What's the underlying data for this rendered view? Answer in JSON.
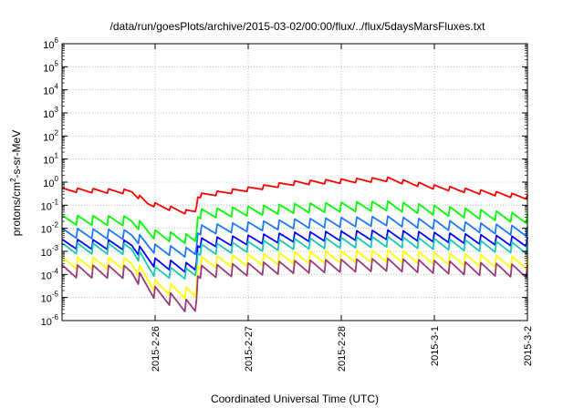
{
  "chart_data": {
    "type": "line",
    "title": "/data/run/goesPlots/archive/2015-03-02/00:00/flux/../flux/5daysMarsFluxes.txt",
    "xlabel": "Coordinated Universal Time (UTC)",
    "ylabel": {
      "prefix": "protons/cm",
      "sup": "2",
      "suffix": "-s-sr-MeV"
    },
    "yscale": "log",
    "ylim": [
      1e-06,
      1000000.0
    ],
    "xlim": [
      "2015-02-25 00:00",
      "2015-03-02 00:00"
    ],
    "grid": true,
    "y_ticks": [
      {
        "value": 1e-06,
        "base": "10",
        "exp": "-6"
      },
      {
        "value": 1e-05,
        "base": "10",
        "exp": "-5"
      },
      {
        "value": 0.0001,
        "base": "10",
        "exp": "-4"
      },
      {
        "value": 0.001,
        "base": "10",
        "exp": "-3"
      },
      {
        "value": 0.01,
        "base": "10",
        "exp": "-2"
      },
      {
        "value": 0.1,
        "base": "10",
        "exp": "-1"
      },
      {
        "value": 1.0,
        "base": "10",
        "exp": "0"
      },
      {
        "value": 10.0,
        "base": "10",
        "exp": "1"
      },
      {
        "value": 100.0,
        "base": "10",
        "exp": "2"
      },
      {
        "value": 1000.0,
        "base": "10",
        "exp": "3"
      },
      {
        "value": 10000.0,
        "base": "10",
        "exp": "4"
      },
      {
        "value": 100000.0,
        "base": "10",
        "exp": "5"
      },
      {
        "value": 1000000.0,
        "base": "10",
        "exp": "6"
      }
    ],
    "x_ticks": [
      {
        "date": "2015-02-26 00:00",
        "label": "2015-2-26"
      },
      {
        "date": "2015-02-27 00:00",
        "label": "2015-2-27"
      },
      {
        "date": "2015-02-28 00:00",
        "label": "2015-2-28"
      },
      {
        "date": "2015-03-01 00:00",
        "label": "2015-3-1"
      },
      {
        "date": "2015-03-02 00:00",
        "label": "2015-3-2"
      }
    ],
    "series": [
      {
        "color": "#ff0000",
        "period_hours": 4,
        "sawtooth_decades": 0.2,
        "anchors": [
          [
            "2015-02-25 00:00",
            0.45
          ],
          [
            "2015-02-25 18:00",
            0.38
          ],
          [
            "2015-02-25 22:00",
            0.12
          ],
          [
            "2015-02-26 08:00",
            0.05
          ],
          [
            "2015-02-26 10:30",
            0.055
          ],
          [
            "2015-02-26 11:00",
            0.25
          ],
          [
            "2015-02-27 12:00",
            0.9
          ],
          [
            "2015-02-28 12:00",
            1.3
          ],
          [
            "2015-03-01 00:00",
            0.6
          ],
          [
            "2015-03-02 00:00",
            0.22
          ]
        ]
      },
      {
        "color": "#00ff00",
        "period_hours": 4,
        "sawtooth_decades": 0.45,
        "anchors": [
          [
            "2015-02-25 00:00",
            0.022
          ],
          [
            "2015-02-25 18:00",
            0.02
          ],
          [
            "2015-02-26 00:00",
            0.005
          ],
          [
            "2015-02-26 10:30",
            0.003
          ],
          [
            "2015-02-26 11:00",
            0.04
          ],
          [
            "2015-02-27 12:00",
            0.07
          ],
          [
            "2015-02-28 12:00",
            0.09
          ],
          [
            "2015-03-02 00:00",
            0.025
          ]
        ]
      },
      {
        "color": "#1e78ff",
        "period_hours": 4,
        "sawtooth_decades": 0.45,
        "anchors": [
          [
            "2015-02-25 00:00",
            0.006
          ],
          [
            "2015-02-25 18:00",
            0.005
          ],
          [
            "2015-02-26 00:00",
            0.0012
          ],
          [
            "2015-02-26 10:30",
            0.0008
          ],
          [
            "2015-02-26 11:00",
            0.008
          ],
          [
            "2015-02-27 12:00",
            0.015
          ],
          [
            "2015-02-28 12:00",
            0.02
          ],
          [
            "2015-03-02 00:00",
            0.007
          ]
        ]
      },
      {
        "color": "#0000ff",
        "period_hours": 4,
        "sawtooth_decades": 0.45,
        "anchors": [
          [
            "2015-02-25 00:00",
            0.002
          ],
          [
            "2015-02-25 18:00",
            0.0018
          ],
          [
            "2015-02-26 00:00",
            0.0003
          ],
          [
            "2015-02-26 10:30",
            0.00017
          ],
          [
            "2015-02-26 11:00",
            0.0022
          ],
          [
            "2015-02-27 12:00",
            0.004
          ],
          [
            "2015-02-28 12:00",
            0.005
          ],
          [
            "2015-03-02 00:00",
            0.0025
          ]
        ]
      },
      {
        "color": "#18c8b4",
        "period_hours": 4,
        "sawtooth_decades": 0.5,
        "anchors": [
          [
            "2015-02-25 00:00",
            0.0013
          ],
          [
            "2015-02-25 18:00",
            0.0012
          ],
          [
            "2015-02-26 00:00",
            0.00012
          ],
          [
            "2015-02-26 10:30",
            0.0001
          ],
          [
            "2015-02-26 11:00",
            0.0011
          ],
          [
            "2015-02-27 12:00",
            0.002
          ],
          [
            "2015-02-28 12:00",
            0.0025
          ],
          [
            "2015-03-02 00:00",
            0.0013
          ]
        ]
      },
      {
        "color": "#ffff00",
        "period_hours": 4,
        "sawtooth_decades": 0.55,
        "anchors": [
          [
            "2015-02-25 00:00",
            0.0003
          ],
          [
            "2015-02-25 18:00",
            0.00028
          ],
          [
            "2015-02-26 00:00",
            3e-05
          ],
          [
            "2015-02-26 10:30",
            1.2e-05
          ],
          [
            "2015-02-26 11:00",
            0.0003
          ],
          [
            "2015-02-27 12:00",
            0.0005
          ],
          [
            "2015-02-28 12:00",
            0.0006
          ],
          [
            "2015-03-02 00:00",
            0.0003
          ]
        ]
      },
      {
        "color": "#9a3a78",
        "period_hours": 4,
        "sawtooth_decades": 0.6,
        "anchors": [
          [
            "2015-02-25 00:00",
            0.00013
          ],
          [
            "2015-02-25 18:00",
            0.00012
          ],
          [
            "2015-02-26 00:00",
            1.5e-05
          ],
          [
            "2015-02-26 10:30",
            2.8e-06
          ],
          [
            "2015-02-26 11:00",
            0.00012
          ],
          [
            "2015-02-27 12:00",
            0.0002
          ],
          [
            "2015-02-28 12:00",
            0.00025
          ],
          [
            "2015-03-02 00:00",
            0.00013
          ]
        ]
      }
    ]
  }
}
